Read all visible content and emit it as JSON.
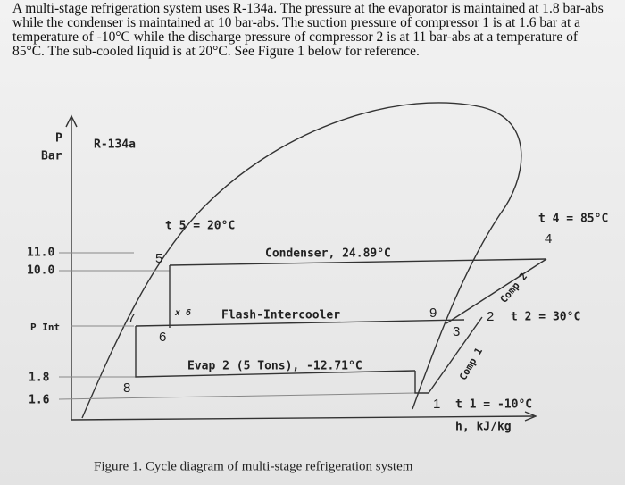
{
  "problem": {
    "text": "A multi-stage refrigeration system uses R-134a. The pressure at the evaporator is maintained at 1.8 bar-abs while the condenser is maintained at 10 bar-abs. The suction pressure of compressor 1 is at 1.6 bar at a temperature of -10°C while the discharge pressure of compressor 2 is at 11 bar-abs at a temperature of 85°C. The sub-cooled liquid is at 20°C. See Figure 1 below for reference."
  },
  "diagram": {
    "y_axis": {
      "symbol": "P",
      "unit": "Bar"
    },
    "fluid": "R-134a",
    "x_axis": "h, kJ/kg",
    "pressure_labels": [
      "11.0",
      "10.0",
      "P Int",
      "1.8",
      "1.6"
    ],
    "points": {
      "p1": "1",
      "p2": "2",
      "p3": "3",
      "p4": "4",
      "p5": "5",
      "p6": "6",
      "p7": "7",
      "p8": "8",
      "p9": "9",
      "x6": "x 6"
    },
    "temperatures": {
      "t1": "t 1 = -10°C",
      "t2": "t 2 = 30°C",
      "t4": "t 4 = 85°C",
      "t5": "t 5 = 20°C"
    },
    "processes": {
      "condenser": "Condenser, 24.89°C",
      "intercooler": "Flash-Intercooler",
      "evaporator": "Evap 2 (5 Tons), -12.71°C",
      "comp1": "Comp 1",
      "comp2": "Comp 2"
    }
  },
  "caption": "Figure 1. Cycle diagram of multi-stage refrigeration system"
}
